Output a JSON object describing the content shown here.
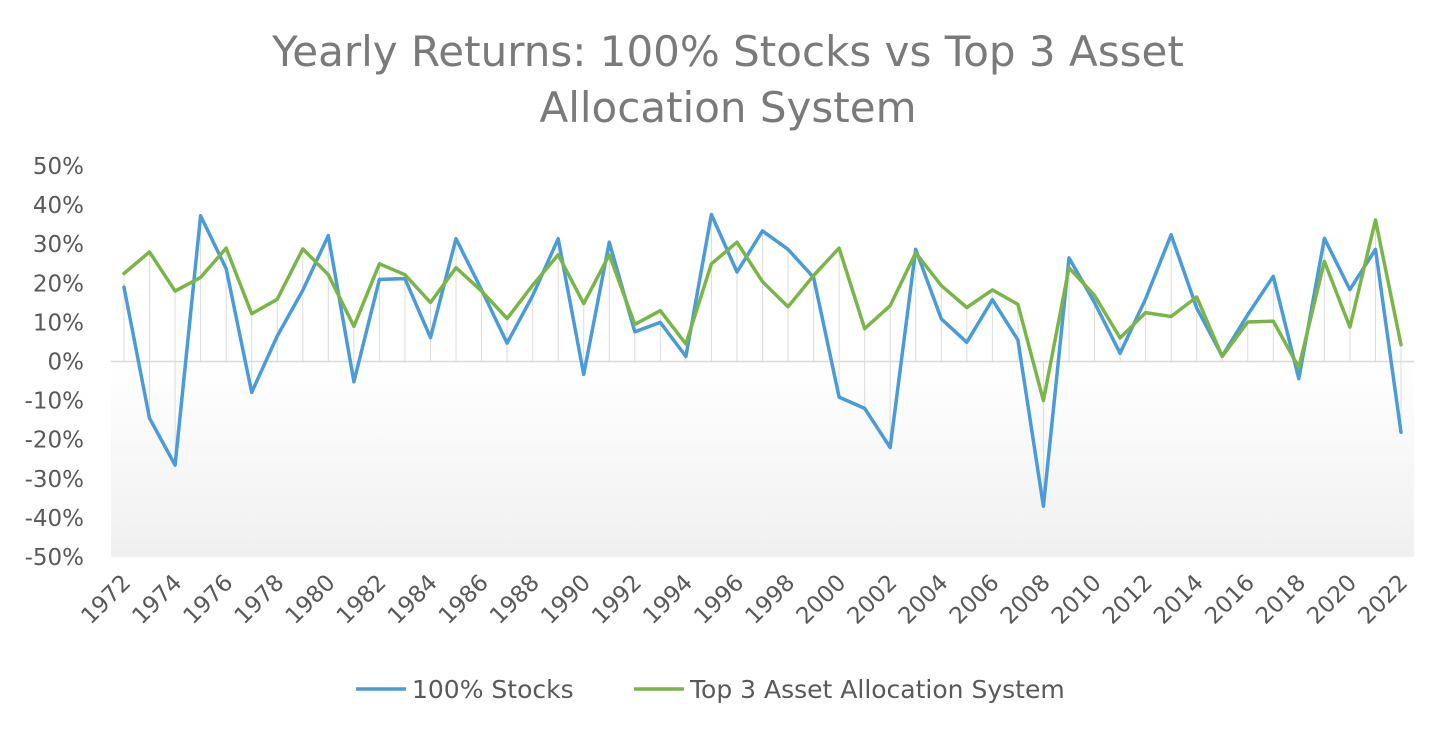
{
  "chart_data": {
    "type": "line",
    "title_line1": "Yearly Returns: 100% Stocks vs Top 3 Asset",
    "title_line2": "Allocation System",
    "xlabel": "",
    "ylabel": "",
    "ylim": [
      -50,
      50
    ],
    "yticks": [
      "50%",
      "40%",
      "30%",
      "20%",
      "10%",
      "0%",
      "-10%",
      "-20%",
      "-30%",
      "-40%",
      "-50%"
    ],
    "x": [
      1972,
      1973,
      1974,
      1975,
      1976,
      1977,
      1978,
      1979,
      1980,
      1981,
      1982,
      1983,
      1984,
      1985,
      1986,
      1987,
      1988,
      1989,
      1990,
      1991,
      1992,
      1993,
      1994,
      1995,
      1996,
      1997,
      1998,
      1999,
      2000,
      2001,
      2002,
      2003,
      2004,
      2005,
      2006,
      2007,
      2008,
      2009,
      2010,
      2011,
      2012,
      2013,
      2014,
      2015,
      2016,
      2017,
      2018,
      2019,
      2020,
      2021,
      2022
    ],
    "xtick_labels": [
      "1972",
      "1974",
      "1976",
      "1978",
      "1980",
      "1982",
      "1984",
      "1986",
      "1988",
      "1990",
      "1992",
      "1994",
      "1996",
      "1998",
      "2000",
      "2002",
      "2004",
      "2006",
      "2008",
      "2010",
      "2012",
      "2014",
      "2016",
      "2018",
      "2020",
      "2022"
    ],
    "legend_position": "bottom",
    "series": [
      {
        "name": "100% Stocks",
        "color": "#4a9bd8",
        "values": [
          19,
          -14.5,
          -26.5,
          37.3,
          23.7,
          -7.9,
          6.5,
          18.2,
          32.2,
          -5.2,
          21,
          21.2,
          6.1,
          31.4,
          18.3,
          4.7,
          16.8,
          31.4,
          -3.3,
          30.5,
          7.6,
          10,
          1.3,
          37.6,
          22.9,
          33.4,
          28.7,
          21.5,
          -9.1,
          -12,
          -22,
          28.7,
          10.9,
          4.9,
          15.8,
          5.5,
          -37,
          26.5,
          15.1,
          2.1,
          16,
          32.4,
          13.7,
          1.4,
          12,
          21.8,
          -4.4,
          31.5,
          18.4,
          28.7,
          -18.1
        ]
      },
      {
        "name": "Top 3 Asset Allocation System",
        "color": "#7ab547",
        "values": [
          22.5,
          28,
          18,
          21.5,
          29,
          12.2,
          15.9,
          28.8,
          22.2,
          9,
          25,
          22.2,
          15.1,
          24,
          18,
          11,
          19.5,
          27.3,
          14.8,
          27.3,
          9.5,
          13,
          4.5,
          25,
          30.5,
          20.4,
          14,
          22,
          29,
          8.4,
          14.3,
          27.8,
          19.4,
          13.8,
          18.3,
          14.6,
          -10,
          24,
          16.9,
          6,
          12.5,
          11.5,
          16.5,
          1.3,
          10.1,
          10.3,
          -1.5,
          25.6,
          8.8,
          36.2,
          4.3
        ]
      }
    ]
  }
}
